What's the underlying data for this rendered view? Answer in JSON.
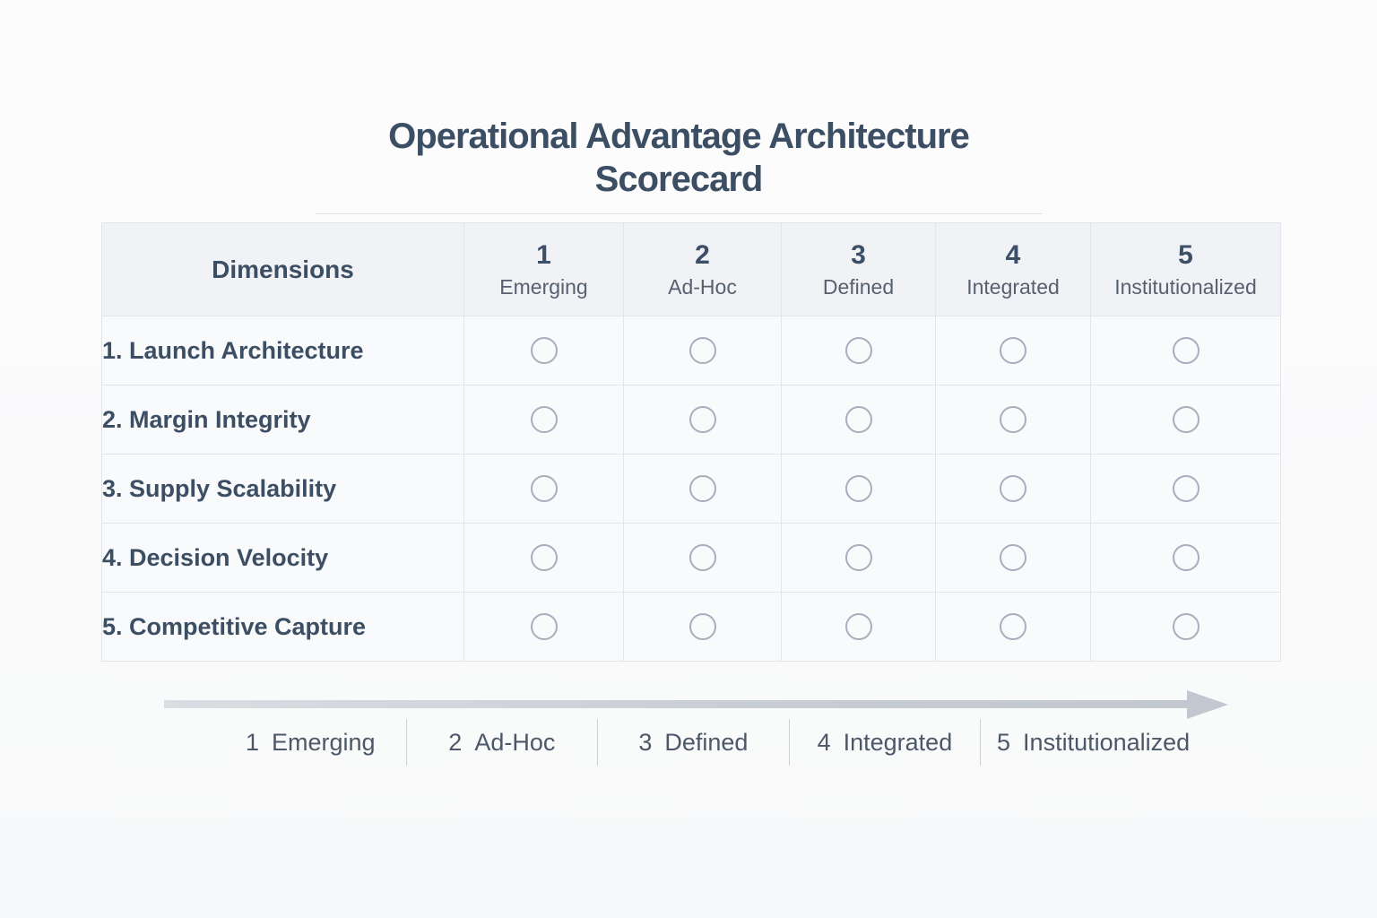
{
  "title": "Operational Advantage Architecture Scorecard",
  "table": {
    "dimensions_header": "Dimensions",
    "levels": [
      {
        "number": "1",
        "label": "Emerging"
      },
      {
        "number": "2",
        "label": "Ad-Hoc"
      },
      {
        "number": "3",
        "label": "Defined"
      },
      {
        "number": "4",
        "label": "Integrated"
      },
      {
        "number": "5",
        "label": "Institutionalized"
      }
    ],
    "rows": [
      {
        "label": "1. Launch Architecture"
      },
      {
        "label": "2. Margin Integrity"
      },
      {
        "label": "3. Supply Scalability"
      },
      {
        "label": "4. Decision Velocity"
      },
      {
        "label": "5. Competitive Capture"
      }
    ]
  },
  "legend": {
    "items": [
      {
        "number": "1",
        "label": "Emerging"
      },
      {
        "number": "2",
        "label": "Ad-Hoc"
      },
      {
        "number": "3",
        "label": "Defined"
      },
      {
        "number": "4",
        "label": "Integrated"
      },
      {
        "number": "5",
        "label": "Institutionalized"
      }
    ]
  },
  "colors": {
    "accent_text": "#3c4e63",
    "secondary_text": "#57606f",
    "legend_text": "#4c5869",
    "radio_border": "#a7aebd",
    "arrow": "#c2c7d0",
    "table_border": "#e2e5ea",
    "header_bg": "#f1f2f5",
    "cell_bg": "#f9fafb",
    "page_bg": "#fbfbfc"
  }
}
